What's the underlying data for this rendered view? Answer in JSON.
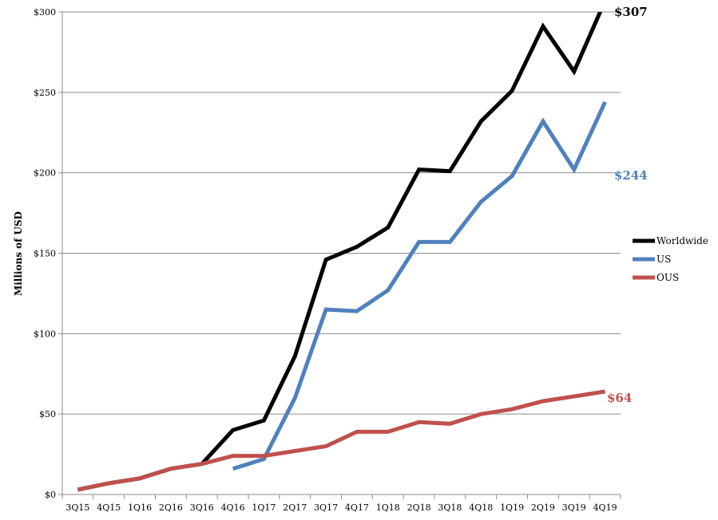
{
  "chart_data": {
    "type": "line",
    "ylabel": "Millions of USD",
    "ylim": [
      0,
      300
    ],
    "yticks": [
      0,
      50,
      100,
      150,
      200,
      250,
      300
    ],
    "ytick_labels": [
      "$0",
      "$50",
      "$100",
      "$150",
      "$200",
      "$250",
      "$300"
    ],
    "grid": "horizontal",
    "legend_position": "right",
    "categories": [
      "3Q15",
      "4Q15",
      "1Q16",
      "2Q16",
      "3Q16",
      "4Q16",
      "1Q17",
      "2Q17",
      "3Q17",
      "4Q17",
      "1Q18",
      "2Q18",
      "3Q18",
      "4Q18",
      "1Q19",
      "2Q19",
      "3Q19",
      "4Q19"
    ],
    "series": [
      {
        "name": "Worldwide",
        "color": "#000000",
        "values": [
          3,
          7,
          10,
          16,
          19,
          40,
          46,
          86,
          146,
          154,
          166,
          202,
          201,
          232,
          251,
          291,
          263,
          307
        ],
        "end_label": "$307"
      },
      {
        "name": "US",
        "color": "#4f81bd",
        "values": [
          null,
          null,
          null,
          null,
          null,
          16,
          22,
          60,
          115,
          114,
          127,
          157,
          157,
          182,
          198,
          232,
          202,
          244
        ],
        "end_label": "$244"
      },
      {
        "name": "OUS",
        "color": "#c0504d",
        "values": [
          3,
          7,
          10,
          16,
          19,
          24,
          24,
          27,
          30,
          39,
          39,
          45,
          44,
          50,
          53,
          58,
          61,
          64
        ],
        "end_label": "$64"
      }
    ]
  }
}
